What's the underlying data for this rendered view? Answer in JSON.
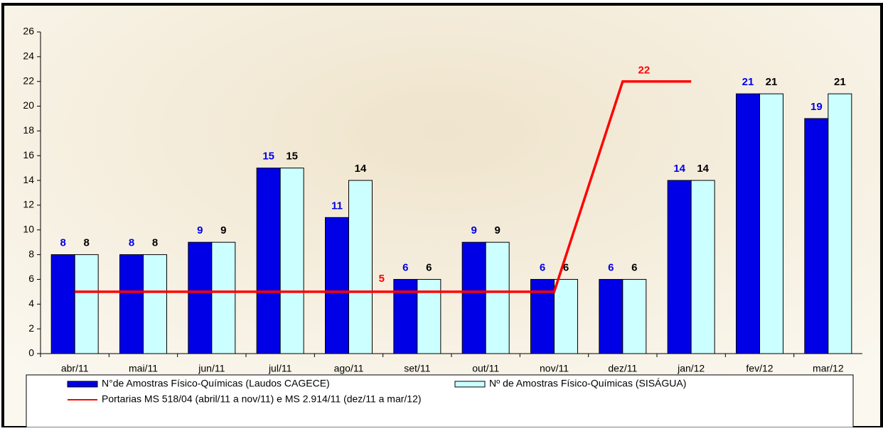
{
  "chart_data": {
    "type": "bar",
    "categories": [
      "abr/11",
      "mai/11",
      "jun/11",
      "jul/11",
      "ago/11",
      "set/11",
      "out/11",
      "nov/11",
      "dez/11",
      "jan/12",
      "fev/12",
      "mar/12"
    ],
    "series": [
      {
        "name": "N°de Amostras Físico-Químicas (Laudos CAGECE)",
        "color": "#0000e6",
        "label_color": "#0000e6",
        "values": [
          8,
          8,
          9,
          15,
          11,
          6,
          9,
          6,
          6,
          14,
          21,
          19
        ]
      },
      {
        "name": "Nº de Amostras Físico-Químicas (SISÁGUA)",
        "color": "#ccffff",
        "label_color": "#000000",
        "values": [
          8,
          8,
          9,
          15,
          14,
          6,
          9,
          6,
          6,
          14,
          21,
          21
        ]
      },
      {
        "name": "Portarias MS 518/04 (abril/11 a nov/11) e MS 2.914/11 (dez/11 a mar/12)",
        "type": "line",
        "color": "#ff0000",
        "values": [
          5,
          5,
          5,
          5,
          5,
          5,
          5,
          5,
          22,
          22,
          null,
          null
        ],
        "value_labels": [
          null,
          null,
          null,
          null,
          null,
          "5",
          null,
          null,
          "22",
          null,
          null,
          null
        ]
      }
    ],
    "ylim": [
      0,
      26
    ],
    "yticks": [
      0,
      2,
      4,
      6,
      8,
      10,
      12,
      14,
      16,
      18,
      20,
      22,
      24,
      26
    ],
    "grid": false,
    "legend": "bottom"
  }
}
